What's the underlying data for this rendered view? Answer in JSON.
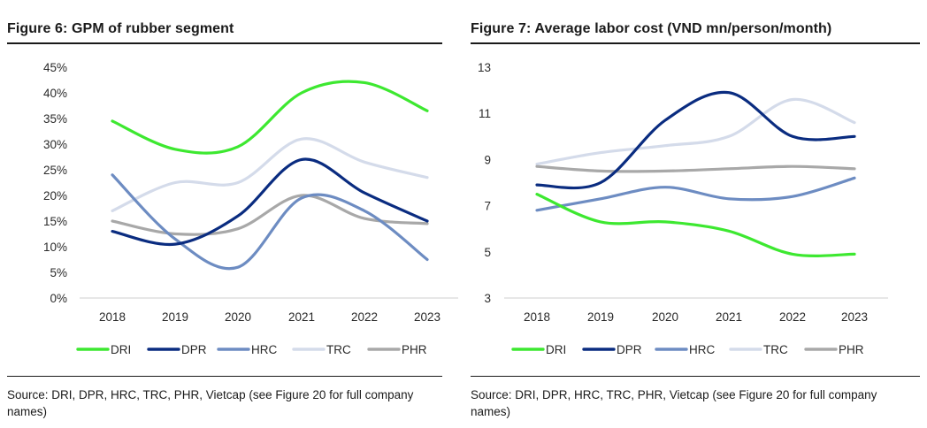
{
  "chart_data": [
    {
      "type": "line",
      "title": "Figure 6: GPM of rubber segment",
      "x": [
        "2018",
        "2019",
        "2020",
        "2021",
        "2022",
        "2023"
      ],
      "ylim": [
        0,
        45
      ],
      "yticks": [
        "0%",
        "5%",
        "10%",
        "15%",
        "20%",
        "25%",
        "30%",
        "35%",
        "40%",
        "45%"
      ],
      "grid": false,
      "legend_position": "bottom",
      "series": [
        {
          "name": "DRI",
          "color": "#3de830",
          "values": [
            34.5,
            29.0,
            29.5,
            40.0,
            42.0,
            36.5
          ]
        },
        {
          "name": "DPR",
          "color": "#0a2c80",
          "values": [
            13.0,
            10.5,
            16.0,
            27.0,
            20.5,
            15.0
          ]
        },
        {
          "name": "HRC",
          "color": "#6d8cc2",
          "values": [
            24.0,
            11.5,
            6.0,
            19.5,
            17.0,
            7.5
          ]
        },
        {
          "name": "TRC",
          "color": "#d4dbea",
          "values": [
            17.0,
            22.5,
            22.5,
            31.0,
            26.5,
            23.5
          ]
        },
        {
          "name": "PHR",
          "color": "#a8a8a8",
          "values": [
            15.0,
            12.5,
            13.5,
            20.0,
            15.5,
            14.5
          ]
        }
      ],
      "source": "Source: DRI, DPR, HRC, TRC, PHR, Vietcap (see Figure 20 for full company names)"
    },
    {
      "type": "line",
      "title": "Figure 7:  Average labor cost (VND mn/person/month)",
      "x": [
        "2018",
        "2019",
        "2020",
        "2021",
        "2022",
        "2023"
      ],
      "ylim": [
        3,
        13
      ],
      "yticks": [
        "3",
        "5",
        "7",
        "9",
        "11",
        "13"
      ],
      "grid": false,
      "legend_position": "bottom",
      "series": [
        {
          "name": "DRI",
          "color": "#3de830",
          "values": [
            7.5,
            6.3,
            6.3,
            5.9,
            4.9,
            4.9
          ]
        },
        {
          "name": "DPR",
          "color": "#0a2c80",
          "values": [
            7.9,
            8.0,
            10.7,
            11.9,
            10.0,
            10.0
          ]
        },
        {
          "name": "HRC",
          "color": "#6d8cc2",
          "values": [
            6.8,
            7.3,
            7.8,
            7.3,
            7.4,
            8.2
          ]
        },
        {
          "name": "TRC",
          "color": "#d4dbea",
          "values": [
            8.8,
            9.3,
            9.6,
            10.0,
            11.6,
            10.6
          ]
        },
        {
          "name": "PHR",
          "color": "#a8a8a8",
          "values": [
            8.7,
            8.5,
            8.5,
            8.6,
            8.7,
            8.6
          ]
        }
      ],
      "source": "Source: DRI, DPR, HRC, TRC, PHR, Vietcap (see Figure 20 for full company names)"
    }
  ]
}
